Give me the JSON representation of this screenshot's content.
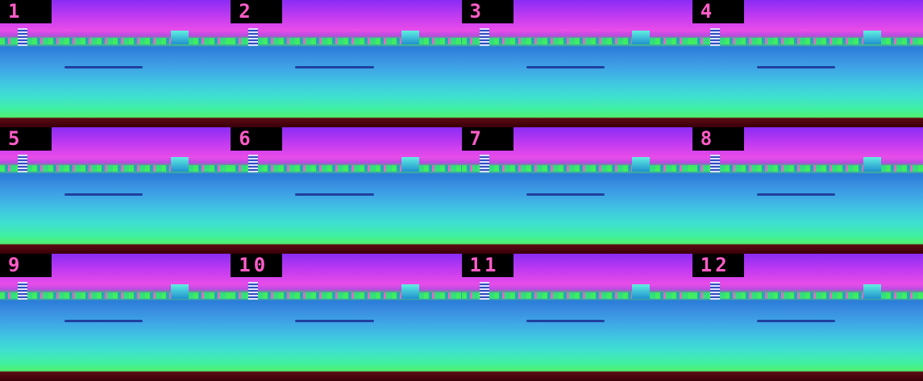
{
  "frames": [
    {
      "label": "1"
    },
    {
      "label": "2"
    },
    {
      "label": "3"
    },
    {
      "label": "4"
    },
    {
      "label": "5"
    },
    {
      "label": "6"
    },
    {
      "label": "7"
    },
    {
      "label": "8"
    },
    {
      "label": "9"
    },
    {
      "label": "10"
    },
    {
      "label": "11"
    },
    {
      "label": "12"
    }
  ]
}
